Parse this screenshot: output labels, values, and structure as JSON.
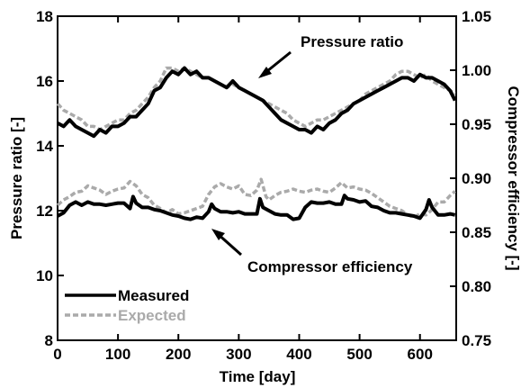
{
  "chart_data": {
    "type": "line",
    "title": "",
    "xlabel": "Time [day]",
    "ylabel_left": "Pressure ratio [-]",
    "ylabel_right": "Compressor efficiency [-]",
    "xlim": [
      0,
      660
    ],
    "ylim_left": [
      8,
      18
    ],
    "ylim_right": [
      0.75,
      1.05
    ],
    "xticks": [
      "0",
      "100",
      "200",
      "300",
      "400",
      "500",
      "600"
    ],
    "yticks_left": [
      "8",
      "10",
      "12",
      "14",
      "16",
      "18"
    ],
    "yticks_right": [
      "0.75",
      "0.80",
      "0.85",
      "0.90",
      "0.95",
      "1.00",
      "1.05"
    ],
    "grid": false,
    "legend_position": "bottom-left",
    "legend": [
      {
        "label": "Measured",
        "color": "#000000",
        "style": "solid"
      },
      {
        "label": "Expected",
        "color": "#aaaaaa",
        "style": "dashed"
      }
    ],
    "annotations": [
      {
        "text": "Pressure ratio",
        "points_to": "pressure ratio curves"
      },
      {
        "text": "Compressor efficiency",
        "points_to": "compressor efficiency curves"
      }
    ],
    "series": [
      {
        "name": "Measured",
        "group": "Pressure ratio",
        "axis": "left",
        "color": "#000000",
        "dashed": false,
        "x": [
          0,
          10,
          20,
          30,
          40,
          50,
          60,
          70,
          80,
          90,
          100,
          110,
          120,
          130,
          140,
          150,
          160,
          170,
          180,
          190,
          200,
          210,
          220,
          230,
          240,
          250,
          260,
          270,
          280,
          290,
          300,
          310,
          320,
          330,
          340,
          350,
          360,
          370,
          380,
          390,
          400,
          410,
          420,
          430,
          440,
          450,
          460,
          470,
          480,
          490,
          500,
          510,
          520,
          530,
          540,
          550,
          560,
          570,
          580,
          590,
          600,
          610,
          620,
          630,
          640,
          650,
          658
        ],
        "y": [
          14.7,
          14.6,
          14.8,
          14.6,
          14.5,
          14.4,
          14.3,
          14.5,
          14.4,
          14.6,
          14.6,
          14.7,
          14.9,
          14.9,
          15.1,
          15.3,
          15.7,
          15.8,
          16.1,
          16.3,
          16.2,
          16.4,
          16.2,
          16.3,
          16.1,
          16.1,
          16.0,
          15.9,
          15.8,
          16.0,
          15.8,
          15.7,
          15.6,
          15.5,
          15.4,
          15.2,
          15.0,
          14.8,
          14.7,
          14.6,
          14.5,
          14.5,
          14.4,
          14.6,
          14.5,
          14.7,
          14.8,
          15.0,
          15.1,
          15.3,
          15.4,
          15.5,
          15.6,
          15.7,
          15.8,
          15.9,
          16.0,
          16.1,
          16.1,
          16.0,
          16.2,
          16.1,
          16.1,
          16.0,
          15.9,
          15.7,
          15.4
        ]
      },
      {
        "name": "Expected",
        "group": "Pressure ratio",
        "axis": "left",
        "color": "#aaaaaa",
        "dashed": true,
        "x": [
          0,
          10,
          20,
          30,
          40,
          50,
          60,
          70,
          80,
          90,
          100,
          110,
          120,
          130,
          140,
          150,
          160,
          170,
          180,
          190,
          200,
          210,
          220,
          230,
          240,
          250,
          260,
          270,
          280,
          290,
          300,
          310,
          320,
          330,
          340,
          350,
          360,
          370,
          380,
          390,
          400,
          410,
          420,
          430,
          440,
          450,
          460,
          470,
          480,
          490,
          500,
          510,
          520,
          530,
          540,
          550,
          560,
          570,
          580,
          590,
          600,
          610,
          620,
          630,
          640,
          650,
          658
        ],
        "y": [
          15.3,
          15.1,
          15.0,
          14.9,
          14.8,
          14.6,
          14.6,
          14.5,
          14.6,
          14.7,
          14.8,
          14.8,
          15.0,
          15.1,
          15.3,
          15.5,
          15.8,
          16.0,
          16.4,
          16.4,
          16.3,
          16.4,
          16.3,
          16.2,
          16.1,
          16.1,
          16.0,
          15.9,
          15.8,
          15.9,
          15.8,
          15.7,
          15.6,
          15.5,
          15.4,
          15.3,
          15.2,
          15.1,
          15.0,
          14.8,
          14.7,
          14.6,
          14.7,
          14.8,
          14.8,
          14.9,
          15.0,
          15.1,
          15.2,
          15.3,
          15.4,
          15.6,
          15.7,
          15.8,
          15.9,
          16.0,
          16.2,
          16.3,
          16.3,
          16.2,
          16.1,
          16.2,
          16.0,
          15.9,
          15.8,
          15.7,
          15.6
        ]
      },
      {
        "name": "Measured",
        "group": "Compressor efficiency",
        "axis": "right",
        "color": "#000000",
        "dashed": false,
        "x": [
          0,
          10,
          20,
          30,
          40,
          50,
          60,
          70,
          80,
          90,
          100,
          110,
          120,
          125,
          130,
          140,
          150,
          160,
          170,
          180,
          190,
          200,
          210,
          220,
          230,
          240,
          250,
          255,
          260,
          270,
          280,
          290,
          300,
          310,
          320,
          330,
          335,
          340,
          350,
          360,
          370,
          380,
          390,
          400,
          410,
          420,
          430,
          440,
          450,
          460,
          470,
          475,
          480,
          490,
          500,
          510,
          520,
          530,
          540,
          550,
          560,
          570,
          580,
          590,
          600,
          610,
          615,
          620,
          630,
          640,
          650,
          658
        ],
        "y": [
          0.865,
          0.868,
          0.875,
          0.878,
          0.875,
          0.878,
          0.876,
          0.876,
          0.875,
          0.876,
          0.877,
          0.877,
          0.872,
          0.883,
          0.877,
          0.873,
          0.873,
          0.871,
          0.87,
          0.868,
          0.866,
          0.865,
          0.863,
          0.862,
          0.864,
          0.863,
          0.869,
          0.876,
          0.872,
          0.869,
          0.869,
          0.868,
          0.869,
          0.867,
          0.867,
          0.867,
          0.881,
          0.873,
          0.87,
          0.867,
          0.866,
          0.866,
          0.862,
          0.863,
          0.873,
          0.878,
          0.877,
          0.877,
          0.878,
          0.876,
          0.876,
          0.884,
          0.881,
          0.88,
          0.878,
          0.879,
          0.874,
          0.873,
          0.87,
          0.868,
          0.868,
          0.867,
          0.866,
          0.865,
          0.863,
          0.871,
          0.88,
          0.873,
          0.866,
          0.866,
          0.867,
          0.866
        ]
      },
      {
        "name": "Expected",
        "group": "Compressor efficiency",
        "axis": "right",
        "color": "#aaaaaa",
        "dashed": true,
        "x": [
          0,
          10,
          20,
          30,
          40,
          50,
          60,
          70,
          80,
          90,
          100,
          110,
          120,
          130,
          140,
          150,
          160,
          170,
          180,
          190,
          200,
          210,
          220,
          230,
          240,
          250,
          260,
          270,
          280,
          290,
          300,
          310,
          320,
          330,
          337,
          345,
          350,
          360,
          370,
          380,
          390,
          400,
          410,
          420,
          430,
          440,
          450,
          460,
          470,
          480,
          490,
          500,
          510,
          520,
          530,
          540,
          550,
          560,
          570,
          580,
          590,
          600,
          610,
          620,
          630,
          640,
          650,
          658
        ],
        "y": [
          0.875,
          0.88,
          0.883,
          0.887,
          0.888,
          0.893,
          0.891,
          0.889,
          0.885,
          0.888,
          0.89,
          0.891,
          0.897,
          0.893,
          0.885,
          0.882,
          0.875,
          0.872,
          0.868,
          0.871,
          0.867,
          0.868,
          0.87,
          0.872,
          0.874,
          0.885,
          0.892,
          0.895,
          0.892,
          0.89,
          0.893,
          0.885,
          0.884,
          0.889,
          0.899,
          0.883,
          0.88,
          0.884,
          0.887,
          0.888,
          0.89,
          0.888,
          0.887,
          0.889,
          0.89,
          0.888,
          0.887,
          0.891,
          0.896,
          0.891,
          0.892,
          0.89,
          0.889,
          0.886,
          0.882,
          0.878,
          0.874,
          0.872,
          0.87,
          0.866,
          0.864,
          0.867,
          0.866,
          0.871,
          0.878,
          0.878,
          0.884,
          0.888
        ]
      }
    ]
  }
}
